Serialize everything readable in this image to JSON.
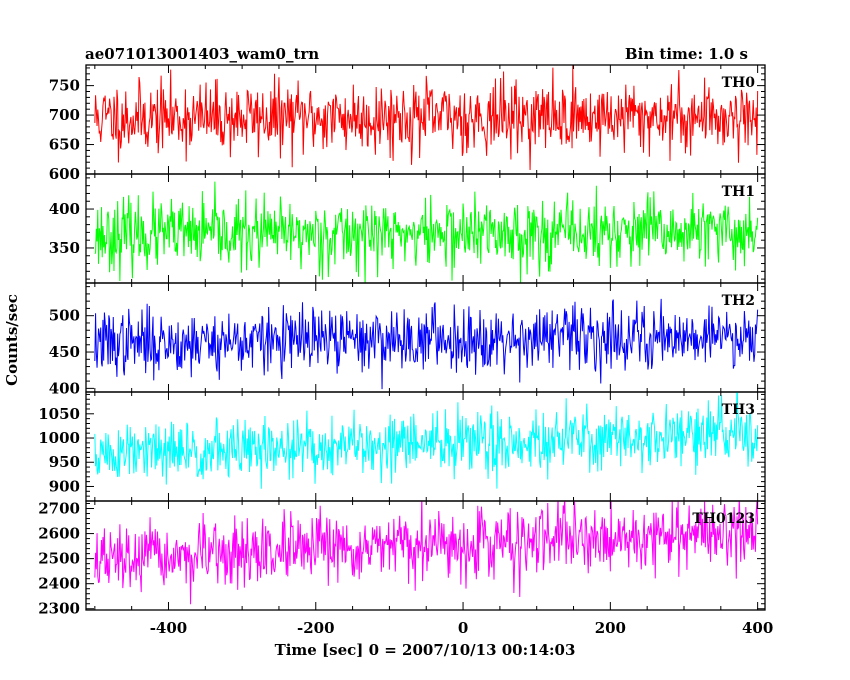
{
  "chart_data": {
    "type": "line",
    "title": "ae071013001403_wam0_trn",
    "subtitle": "Bin time: 1.0 s",
    "xlabel": "Time [sec] 0 = 2007/10/13 00:14:03",
    "ylabel": "Counts/sec",
    "xlim": [
      -512,
      410
    ],
    "xticks": [
      -400,
      -200,
      0,
      200,
      400
    ],
    "grid": false,
    "x_start": -500,
    "x_end": 400,
    "x_step": 1,
    "panels": [
      {
        "name": "TH0",
        "color": "#ff0000",
        "ylim": [
          600,
          785
        ],
        "yticks": [
          600,
          650,
          700,
          750
        ],
        "mean_start": 695,
        "mean_end": 698,
        "spread": 30,
        "seed": 11
      },
      {
        "name": "TH1",
        "color": "#00ff00",
        "ylim": [
          305,
          445
        ],
        "yticks": [
          350,
          400
        ],
        "mean_start": 367,
        "mean_end": 370,
        "spread": 22,
        "seed": 23
      },
      {
        "name": "TH2",
        "color": "#0000ff",
        "ylim": [
          395,
          545
        ],
        "yticks": [
          400,
          450,
          500
        ],
        "mean_start": 462,
        "mean_end": 474,
        "spread": 22,
        "seed": 37
      },
      {
        "name": "TH3",
        "color": "#00ffff",
        "ylim": [
          870,
          1095
        ],
        "yticks": [
          900,
          950,
          1000,
          1050
        ],
        "mean_start": 965,
        "mean_end": 1010,
        "spread": 32,
        "seed": 51
      },
      {
        "name": "TH0123",
        "color": "#ff00ff",
        "ylim": [
          2295,
          2730
        ],
        "yticks": [
          2300,
          2400,
          2500,
          2600,
          2700
        ],
        "mean_start": 2490,
        "mean_end": 2610,
        "spread": 65,
        "seed": 67
      }
    ]
  }
}
